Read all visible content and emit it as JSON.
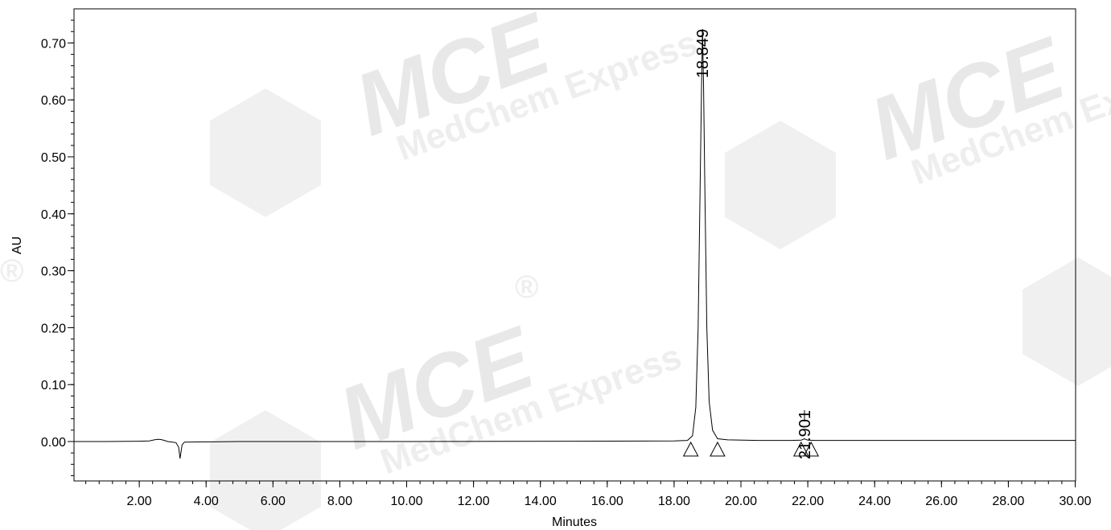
{
  "chart_data": {
    "type": "line",
    "title": "",
    "xlabel": "Minutes",
    "ylabel": "AU",
    "xlim": [
      0,
      30
    ],
    "ylim": [
      -0.07,
      0.76
    ],
    "x_ticks": [
      "2.00",
      "4.00",
      "6.00",
      "8.00",
      "10.00",
      "12.00",
      "14.00",
      "16.00",
      "18.00",
      "20.00",
      "22.00",
      "24.00",
      "26.00",
      "28.00",
      "30.00"
    ],
    "y_ticks": [
      "0.00",
      "0.10",
      "0.20",
      "0.30",
      "0.40",
      "0.50",
      "0.60",
      "0.70"
    ],
    "grid": false,
    "series": [
      {
        "x": [
          0,
          1.0,
          2.0,
          2.3,
          2.45,
          2.55,
          2.65,
          2.75,
          2.85,
          3.0,
          3.1,
          3.18,
          3.22,
          3.28,
          3.35,
          5.0,
          10.0,
          15.0,
          18.0,
          18.4,
          18.55,
          18.65,
          18.72,
          18.78,
          18.82,
          18.849,
          18.88,
          18.92,
          18.98,
          19.05,
          19.15,
          19.3,
          19.6,
          20.5,
          21.5,
          21.8,
          21.87,
          21.901,
          21.93,
          22.0,
          22.2,
          24.0,
          26.0,
          28.0,
          30.0
        ],
        "y": [
          0.0,
          0.0,
          0.0005,
          0.001,
          0.003,
          0.004,
          0.0035,
          0.002,
          0.0,
          -0.001,
          -0.002,
          -0.01,
          -0.03,
          -0.006,
          -0.001,
          0.0,
          0.0,
          0.0005,
          0.001,
          0.002,
          0.01,
          0.06,
          0.2,
          0.45,
          0.62,
          0.72,
          0.63,
          0.45,
          0.2,
          0.07,
          0.02,
          0.005,
          0.003,
          0.002,
          0.002,
          0.0025,
          0.004,
          0.005,
          0.004,
          0.0025,
          0.002,
          0.002,
          0.002,
          0.002,
          0.002
        ]
      }
    ],
    "peaks": [
      {
        "rt": 18.849,
        "label": "18.849",
        "start": 18.5,
        "end": 19.3
      },
      {
        "rt": 21.901,
        "label": "21.901",
        "start": 21.8,
        "end": 22.1
      }
    ]
  },
  "watermark": {
    "brand": "MCE",
    "company": "MedChem Express",
    "registered": "®"
  }
}
